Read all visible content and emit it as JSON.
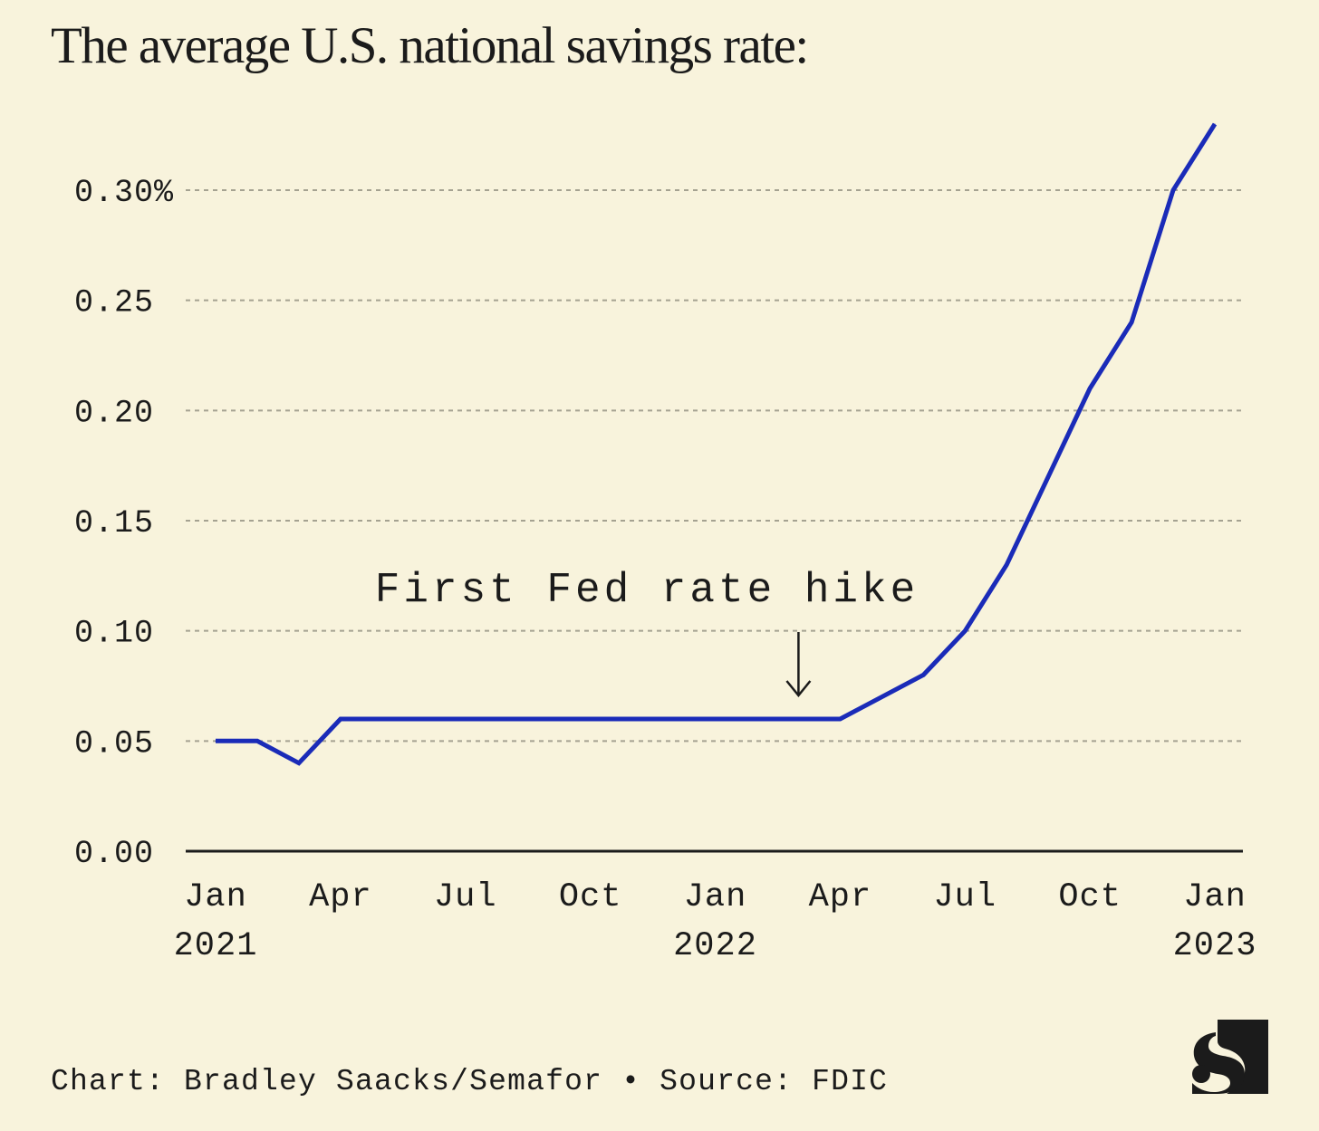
{
  "title": "The average U.S. national savings rate:",
  "credit": {
    "text": "Chart: Bradley Saacks/Semafor • Source: FDIC"
  },
  "logo": {
    "icon": "semafor-s-logo"
  },
  "colors": {
    "background": "#f8f3dc",
    "line": "#1a2bb8",
    "text": "#1b1b1b",
    "grid": "#a5a291"
  },
  "chart_data": {
    "type": "line",
    "title": "The average U.S. national savings rate:",
    "xlabel": "",
    "ylabel": "",
    "x_range": [
      "2021-01",
      "2023-01"
    ],
    "ylim": [
      0,
      0.3
    ],
    "y_unit": "%",
    "grid": "horizontal dashed",
    "y_ticks": [
      {
        "value": 0.0,
        "label": "0.00"
      },
      {
        "value": 0.05,
        "label": "0.05"
      },
      {
        "value": 0.1,
        "label": "0.10"
      },
      {
        "value": 0.15,
        "label": "0.15"
      },
      {
        "value": 0.2,
        "label": "0.20"
      },
      {
        "value": 0.25,
        "label": "0.25"
      },
      {
        "value": 0.3,
        "label": "0.30%"
      }
    ],
    "x_ticks": [
      {
        "date": "2021-01",
        "label": "Jan",
        "year": "2021"
      },
      {
        "date": "2021-04",
        "label": "Apr",
        "year": ""
      },
      {
        "date": "2021-07",
        "label": "Jul",
        "year": ""
      },
      {
        "date": "2021-10",
        "label": "Oct",
        "year": ""
      },
      {
        "date": "2022-01",
        "label": "Jan",
        "year": "2022"
      },
      {
        "date": "2022-04",
        "label": "Apr",
        "year": ""
      },
      {
        "date": "2022-07",
        "label": "Jul",
        "year": ""
      },
      {
        "date": "2022-10",
        "label": "Oct",
        "year": ""
      },
      {
        "date": "2023-01",
        "label": "Jan",
        "year": "2023"
      }
    ],
    "series": [
      {
        "points": [
          {
            "x": "2021-01",
            "y": 0.05
          },
          {
            "x": "2021-02",
            "y": 0.05
          },
          {
            "x": "2021-03",
            "y": 0.04
          },
          {
            "x": "2021-04",
            "y": 0.06
          },
          {
            "x": "2021-05",
            "y": 0.06
          },
          {
            "x": "2021-06",
            "y": 0.06
          },
          {
            "x": "2021-07",
            "y": 0.06
          },
          {
            "x": "2021-08",
            "y": 0.06
          },
          {
            "x": "2021-09",
            "y": 0.06
          },
          {
            "x": "2021-10",
            "y": 0.06
          },
          {
            "x": "2021-11",
            "y": 0.06
          },
          {
            "x": "2021-12",
            "y": 0.06
          },
          {
            "x": "2022-01",
            "y": 0.06
          },
          {
            "x": "2022-02",
            "y": 0.06
          },
          {
            "x": "2022-03",
            "y": 0.06
          },
          {
            "x": "2022-04",
            "y": 0.06
          },
          {
            "x": "2022-05",
            "y": 0.07
          },
          {
            "x": "2022-06",
            "y": 0.08
          },
          {
            "x": "2022-07",
            "y": 0.1
          },
          {
            "x": "2022-08",
            "y": 0.13
          },
          {
            "x": "2022-09",
            "y": 0.17
          },
          {
            "x": "2022-10",
            "y": 0.21
          },
          {
            "x": "2022-11",
            "y": 0.24
          },
          {
            "x": "2022-12",
            "y": 0.3
          },
          {
            "x": "2023-01",
            "y": 0.33
          }
        ]
      }
    ],
    "annotations": [
      {
        "text": "First Fed rate hike",
        "x": "2022-03",
        "arrow": "down"
      }
    ]
  }
}
